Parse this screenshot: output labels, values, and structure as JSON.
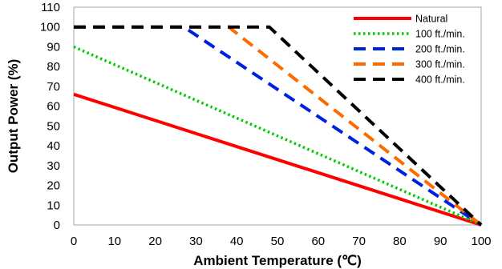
{
  "chart_data": {
    "type": "line",
    "xlabel": "Ambient Temperature (℃)",
    "ylabel": "Output Power  (%)",
    "xlim": [
      0,
      100
    ],
    "ylim": [
      0,
      110
    ],
    "xticks": [
      0,
      10,
      20,
      30,
      40,
      50,
      60,
      70,
      80,
      90,
      100
    ],
    "yticks": [
      0,
      10,
      20,
      30,
      40,
      50,
      60,
      70,
      80,
      90,
      100,
      110
    ],
    "grid": false,
    "legend_position": "top-right",
    "series": [
      {
        "name": "Natural",
        "color": "#ff0000",
        "style": "solid",
        "x": [
          0,
          100
        ],
        "y": [
          66,
          0
        ]
      },
      {
        "name": "100 ft./min.",
        "color": "#00cc00",
        "style": "dotted",
        "x": [
          0,
          100
        ],
        "y": [
          90,
          0
        ]
      },
      {
        "name": "200 ft./min.",
        "color": "#0020e0",
        "style": "dashed",
        "x": [
          0,
          27,
          100
        ],
        "y": [
          100,
          100,
          0
        ]
      },
      {
        "name": "300 ft./min.",
        "color": "#ff6a00",
        "style": "dashed",
        "x": [
          0,
          38,
          100
        ],
        "y": [
          100,
          100,
          0
        ]
      },
      {
        "name": "400 ft./min.",
        "color": "#000000",
        "style": "dashed",
        "x": [
          0,
          48,
          100
        ],
        "y": [
          100,
          100,
          0
        ]
      }
    ]
  }
}
